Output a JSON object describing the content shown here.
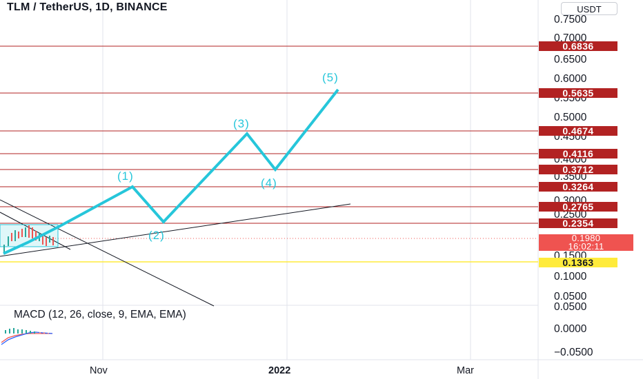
{
  "header": {
    "symbol_title": "TLM / TetherUS, 1D, BINANCE",
    "currency_button": "USDT"
  },
  "price_axis": {
    "ticks": [
      "0.7500",
      "0.7000",
      "0.6500",
      "0.6000",
      "0.5500",
      "0.5000",
      "0.4500",
      "0.4000",
      "0.3500",
      "0.3000",
      "0.2500",
      "0.1500",
      "0.1000",
      "0.0500"
    ]
  },
  "macd_axis": {
    "ticks": [
      "0.0500",
      "0.0000",
      "−0.0500"
    ]
  },
  "time_axis": {
    "labels": [
      {
        "text": "Nov",
        "bold": false
      },
      {
        "text": "2022",
        "bold": true
      },
      {
        "text": "Mar",
        "bold": false
      }
    ]
  },
  "price_levels": [
    {
      "label": "0.6836",
      "color": "#b22222"
    },
    {
      "label": "0.5635",
      "color": "#b22222"
    },
    {
      "label": "0.4674",
      "color": "#b22222"
    },
    {
      "label": "0.4116",
      "color": "#b22222"
    },
    {
      "label": "0.3712",
      "color": "#b22222"
    },
    {
      "label": "0.3264",
      "color": "#b22222"
    },
    {
      "label": "0.2765",
      "color": "#b22222"
    },
    {
      "label": "0.2354",
      "color": "#b22222"
    },
    {
      "label": "0.1363",
      "color": "#ffeb3b"
    }
  ],
  "current_price": {
    "price": "0.1980",
    "countdown": "16:02:11",
    "color": "#ef5350"
  },
  "elliott_wave": {
    "color": "#26c6da",
    "labels": [
      "(1)",
      "(2)",
      "(3)",
      "(4)",
      "(5)"
    ]
  },
  "macd": {
    "title": "MACD (12, 26, close, 9, EMA, EMA)"
  },
  "colors": {
    "level_line": "#b22222",
    "support_line": "#ffeb3b",
    "wave": "#26c6da",
    "trend": "#131722",
    "grid": "#e0e3eb"
  }
}
